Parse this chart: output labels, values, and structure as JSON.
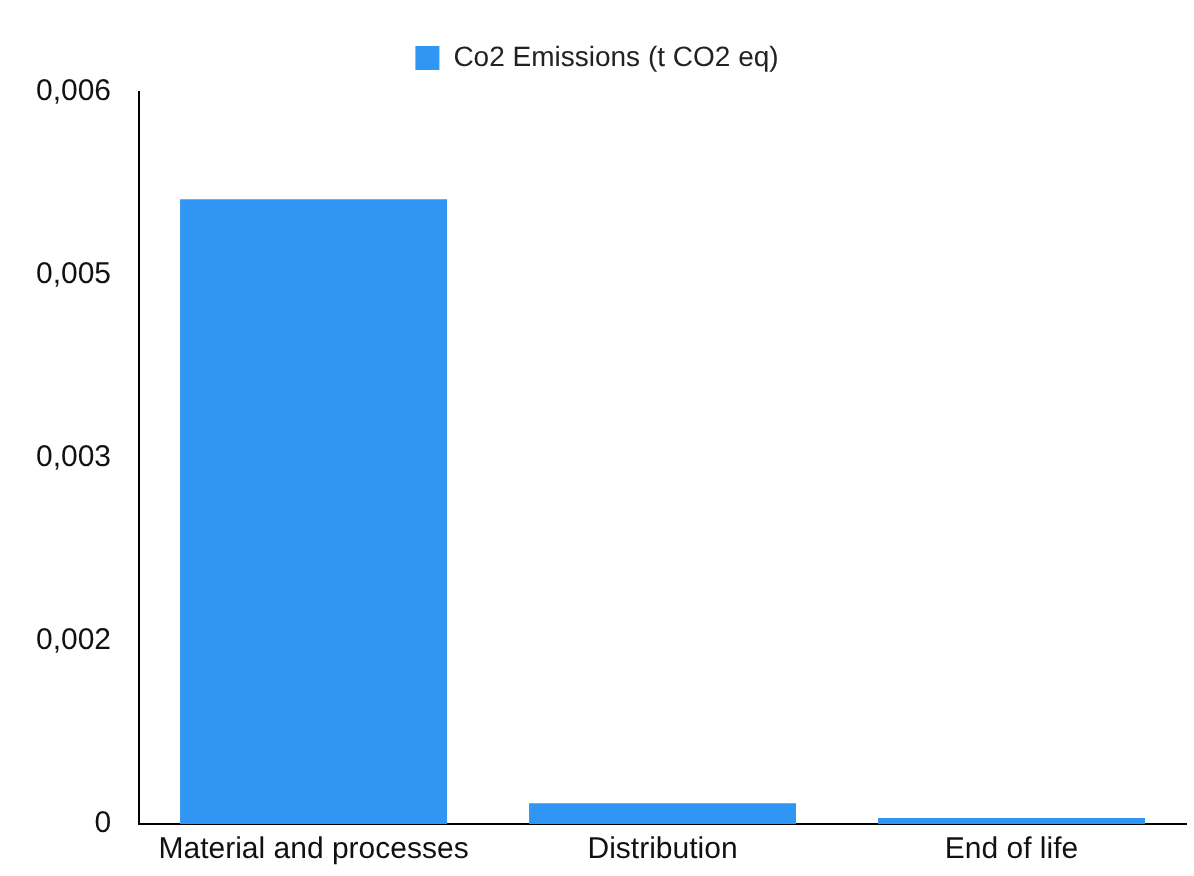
{
  "chart_data": {
    "type": "bar",
    "categories": [
      "Material and processes",
      "Distribution",
      "End of life"
    ],
    "series": [
      {
        "name": "Co2 Emissions (t CO2 eq)",
        "color": "#2f96f3",
        "values": [
          0.00512,
          0.00017,
          5e-05
        ]
      }
    ],
    "ylim": [
      0,
      0.006
    ],
    "yticks": [
      0,
      {
        "value": 0.0015,
        "label": "0,002"
      },
      {
        "value": 0.003,
        "label": "0,003"
      },
      {
        "value": 0.0045,
        "label": "0,005"
      },
      {
        "value": 0.006,
        "label": "0,006"
      }
    ],
    "grid": false,
    "legend": "top"
  }
}
